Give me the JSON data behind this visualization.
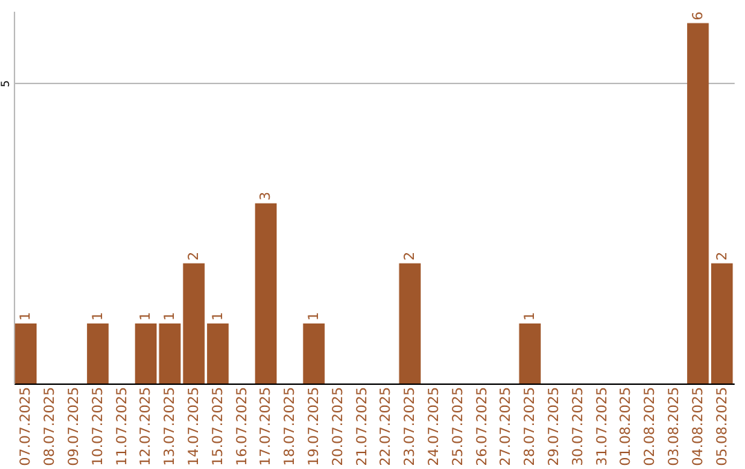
{
  "chart_data": {
    "type": "bar",
    "categories": [
      "07.07.2025",
      "08.07.2025",
      "09.07.2025",
      "10.07.2025",
      "11.07.2025",
      "12.07.2025",
      "13.07.2025",
      "14.07.2025",
      "15.07.2025",
      "16.07.2025",
      "17.07.2025",
      "18.07.2025",
      "19.07.2025",
      "20.07.2025",
      "21.07.2025",
      "22.07.2025",
      "23.07.2025",
      "24.07.2025",
      "25.07.2025",
      "26.07.2025",
      "27.07.2025",
      "28.07.2025",
      "29.07.2025",
      "30.07.2025",
      "31.07.2025",
      "01.08.2025",
      "02.08.2025",
      "03.08.2025",
      "04.08.2025",
      "05.08.2025"
    ],
    "values": [
      1,
      0,
      0,
      1,
      0,
      1,
      1,
      2,
      1,
      0,
      3,
      0,
      1,
      0,
      0,
      0,
      2,
      0,
      0,
      0,
      0,
      1,
      0,
      0,
      0,
      0,
      0,
      0,
      6,
      2
    ],
    "value_labels": [
      "1",
      null,
      null,
      "1",
      null,
      "1",
      "1",
      "2",
      "1",
      null,
      "3",
      null,
      "1",
      null,
      null,
      null,
      "2",
      null,
      null,
      null,
      null,
      "1",
      null,
      null,
      null,
      null,
      null,
      null,
      "6",
      "2"
    ],
    "color": "#a0572b",
    "ylim": [
      0,
      6.2
    ],
    "yticks": [
      5
    ],
    "grid": "y"
  }
}
